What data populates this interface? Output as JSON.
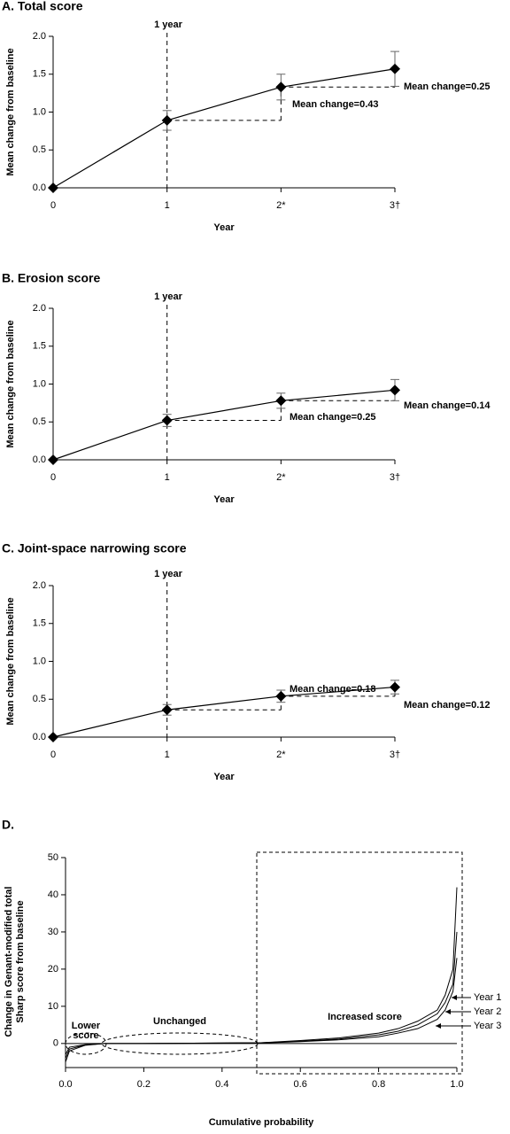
{
  "chart_data": [
    {
      "type": "line",
      "title": "A. Total score",
      "xlabel": "Year",
      "ylabel": "Mean change from baseline",
      "categories": [
        "0",
        "1",
        "2*",
        "3†"
      ],
      "values": [
        0,
        0.89,
        1.33,
        1.57
      ],
      "errors": [
        null,
        0.13,
        0.17,
        0.23
      ],
      "color": "#000000",
      "ylim": [
        0,
        2
      ],
      "yticks": [
        {
          "value": 0,
          "label": "0.0"
        },
        0.5,
        {
          "value": 1,
          "label": "1.0"
        },
        1.5,
        {
          "value": 2,
          "label": "2.0"
        }
      ],
      "annotations": [
        "1 year",
        "Mean change=0.43",
        "Mean change=0.25"
      ]
    },
    {
      "type": "line",
      "title": "B. Erosion score",
      "xlabel": "Year",
      "ylabel": "Mean change from baseline",
      "categories": [
        "0",
        "1",
        "2*",
        "3†"
      ],
      "values": [
        0,
        0.52,
        0.78,
        0.92
      ],
      "errors": [
        null,
        0.08,
        0.1,
        0.14
      ],
      "color": "#000000",
      "ylim": [
        0,
        2
      ],
      "yticks": [
        {
          "value": 0,
          "label": "0.0"
        },
        0.5,
        {
          "value": 1,
          "label": "1.0"
        },
        1.5,
        {
          "value": 2,
          "label": "2.0"
        }
      ],
      "annotations": [
        "1 year",
        "Mean change=0.25",
        "Mean change=0.14"
      ]
    },
    {
      "type": "line",
      "title": "C. Joint-space narrowing score",
      "xlabel": "Year",
      "ylabel": "Mean change from baseline",
      "categories": [
        "0",
        "1",
        "2*",
        "3†"
      ],
      "values": [
        0,
        0.36,
        0.54,
        0.66
      ],
      "errors": [
        null,
        0.07,
        0.08,
        0.09
      ],
      "color": "#000000",
      "ylim": [
        0,
        2
      ],
      "yticks": [
        {
          "value": 0,
          "label": "0.0"
        },
        0.5,
        {
          "value": 1,
          "label": "1.0"
        },
        1.5,
        {
          "value": 2,
          "label": "2.0"
        }
      ],
      "annotations": [
        "1 year",
        "Mean change=0.18",
        "Mean change=0.12"
      ]
    },
    {
      "type": "line",
      "title": "D.",
      "xlabel": "Cumulative probability",
      "ylabel": [
        "Change in Genant-modified total",
        "Sharp score from baseline"
      ],
      "x": [
        0,
        0.01,
        0.05,
        0.1,
        0.2,
        0.5,
        0.6,
        0.7,
        0.8,
        0.85,
        0.9,
        0.95,
        0.97,
        0.99,
        1.0
      ],
      "series": [
        {
          "name": "Year 1",
          "color": "#000000",
          "values": [
            -5,
            -2,
            -0.5,
            0,
            0,
            0.2,
            0.8,
            1.5,
            2.8,
            4,
            6,
            9,
            13,
            20,
            42
          ]
        },
        {
          "name": "Year 2",
          "color": "#000000",
          "values": [
            -4,
            -1.5,
            -0.4,
            0,
            0,
            0.2,
            0.6,
            1.2,
            2.3,
            3.3,
            5,
            8,
            11,
            16,
            30
          ]
        },
        {
          "name": "Year 3",
          "color": "#000000",
          "values": [
            -3,
            -1,
            -0.3,
            0,
            0,
            0.1,
            0.5,
            1,
            1.8,
            2.8,
            4,
            6.5,
            9,
            14,
            23
          ]
        }
      ],
      "xlim": [
        0,
        1
      ],
      "xticks": [
        {
          "value": 0,
          "label": "0.0"
        },
        0.2,
        0.4,
        0.6,
        0.8,
        {
          "value": 1,
          "label": "1.0"
        }
      ],
      "ylim": [
        -6,
        50
      ],
      "yticks": [
        0,
        10,
        20,
        30,
        40,
        50
      ],
      "annotations": [
        "Lower",
        "score",
        "Unchanged",
        "Increased score"
      ]
    }
  ]
}
